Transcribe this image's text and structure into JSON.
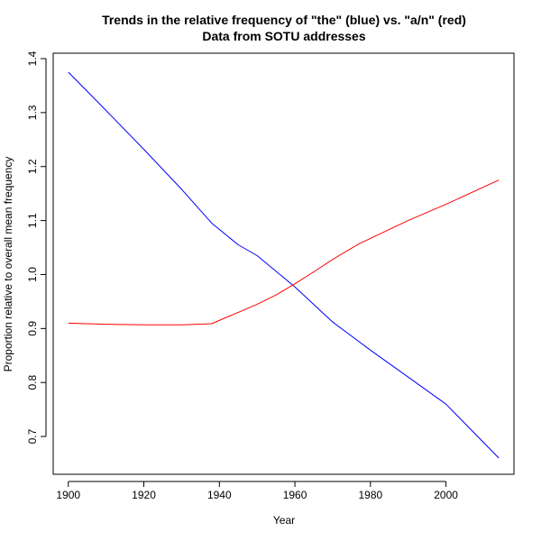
{
  "chart_data": {
    "type": "line",
    "title": "Trends in the relative frequency of \"the\" (blue) vs. \"a/n\" (red)",
    "subtitle": "Data from SOTU addresses",
    "xlabel": "Year",
    "ylabel": "Proportion relative to overall mean frequency",
    "x_ticks": [
      1900,
      1920,
      1940,
      1960,
      1980,
      2000
    ],
    "y_ticks": [
      0.7,
      0.8,
      0.9,
      1.0,
      1.1,
      1.2,
      1.3,
      1.4
    ],
    "y_tick_labels": [
      "0.7",
      "0.8",
      "0.9",
      "1.0",
      "1.1",
      "1.2",
      "1.3",
      "1.4"
    ],
    "xlim": [
      1896,
      2018
    ],
    "ylim": [
      0.63,
      1.41
    ],
    "grid": false,
    "legend": "none",
    "series": [
      {
        "color": "#0000ff",
        "x": [
          1900,
          1910,
          1920,
          1930,
          1938,
          1945,
          1950,
          1960,
          1970,
          1980,
          1990,
          2000,
          2014
        ],
        "y": [
          1.375,
          1.304,
          1.232,
          1.158,
          1.095,
          1.055,
          1.035,
          0.977,
          0.912,
          0.86,
          0.81,
          0.76,
          0.66
        ]
      },
      {
        "color": "#ff0000",
        "x": [
          1900,
          1910,
          1920,
          1930,
          1938,
          1945,
          1950,
          1955,
          1960,
          1965,
          1970,
          1977,
          1980,
          1990,
          2000,
          2014
        ],
        "y": [
          0.91,
          0.908,
          0.907,
          0.907,
          0.909,
          0.93,
          0.945,
          0.962,
          0.983,
          1.005,
          1.028,
          1.057,
          1.067,
          1.1,
          1.13,
          1.175
        ]
      }
    ]
  }
}
